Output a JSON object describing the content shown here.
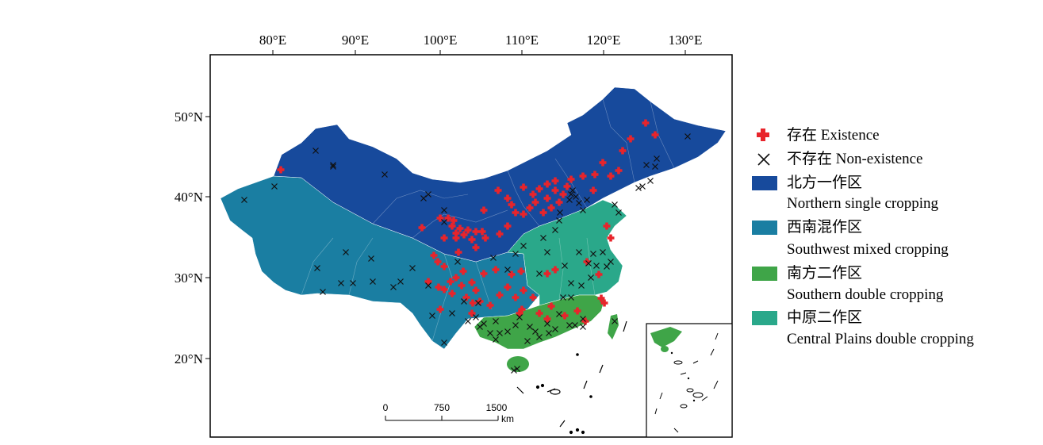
{
  "longitude_labels": [
    "80°E",
    "90°E",
    "100°E",
    "110°E",
    "120°E",
    "130°E"
  ],
  "latitude_labels": [
    "50°N",
    "40°N",
    "30°N",
    "20°N"
  ],
  "scale_bar": {
    "ticks": [
      "0",
      "750",
      "1500"
    ],
    "unit": "km"
  },
  "legend": {
    "existence": {
      "label": "存在 Existence",
      "color": "#e8242b",
      "icon": "plus-marker-icon"
    },
    "non_existence": {
      "label": "不存在 Non-existence",
      "color": "#111111",
      "icon": "x-marker-icon"
    },
    "zones": [
      {
        "label_cn": "北方一作区",
        "label_en": "Northern single cropping",
        "color": "#174a9c"
      },
      {
        "label_cn": "西南混作区",
        "label_en": "Southwest mixed cropping",
        "color": "#1a7ea2"
      },
      {
        "label_cn": "南方二作区",
        "label_en": "Southern double cropping",
        "color": "#3fa548"
      },
      {
        "label_cn": "中原二作区",
        "label_en": "Central Plains double cropping",
        "color": "#2aa88a"
      }
    ]
  }
}
